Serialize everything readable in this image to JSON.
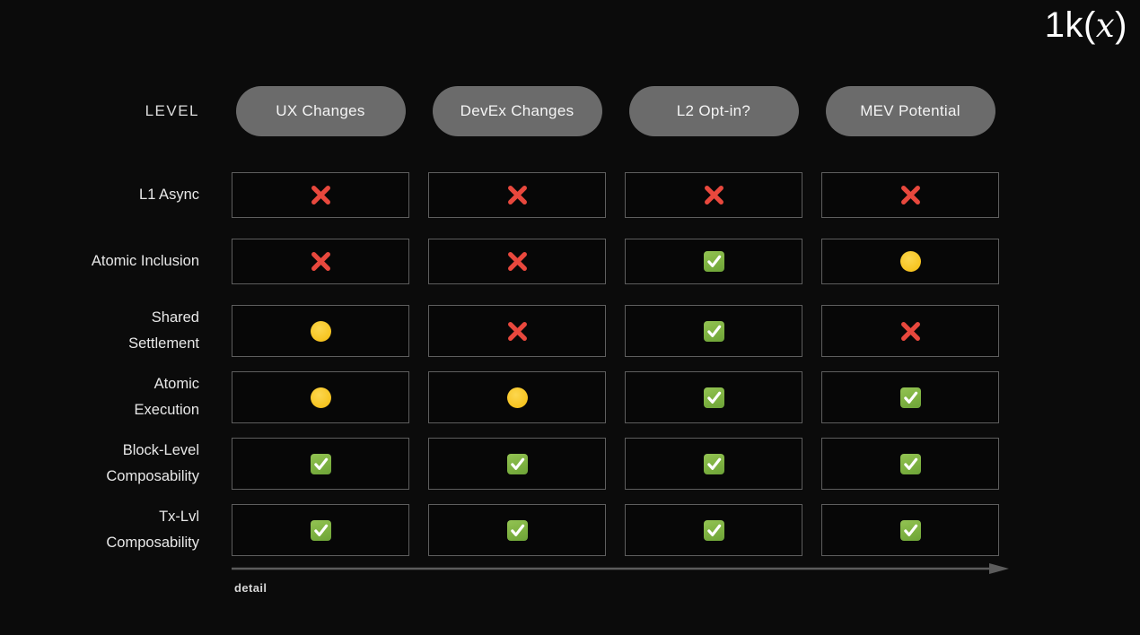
{
  "slide": {
    "logo_text": "1k(x)",
    "background_color": "#0b0b0b"
  },
  "header": {
    "level_label": "LEVEL",
    "columns": [
      "UX Changes",
      "DevEx Changes",
      "L2 Opt-in?",
      "MEV Potential"
    ]
  },
  "matrix": {
    "rows": [
      {
        "label": "L1 Async",
        "cells": [
          "no",
          "no",
          "no",
          "no"
        ]
      },
      {
        "label": "Atomic Inclusion",
        "cells": [
          "no",
          "no",
          "yes",
          "partial"
        ]
      },
      {
        "label": "Shared\nSettlement",
        "cells": [
          "partial",
          "no",
          "yes",
          "no"
        ]
      },
      {
        "label": "Atomic\nExecution",
        "cells": [
          "partial",
          "partial",
          "yes",
          "yes"
        ]
      },
      {
        "label": "Block-Level\nComposability",
        "cells": [
          "yes",
          "yes",
          "yes",
          "yes"
        ]
      },
      {
        "label": "Tx-Lvl\nComposability",
        "cells": [
          "yes",
          "yes",
          "yes",
          "yes"
        ]
      }
    ],
    "icon_names": {
      "no": "red-x-icon",
      "partial": "yellow-dot-icon",
      "yes": "green-check-icon"
    },
    "colors": {
      "x_red": "#e8483d",
      "dot_yellow": "#f7c523",
      "check_green": "#7cb040",
      "pill_gray": "#6b6b6b",
      "cell_border": "#5e5e5e",
      "arrow_gray": "#5c5c5c"
    }
  },
  "footer": {
    "axis_label": "detail"
  }
}
